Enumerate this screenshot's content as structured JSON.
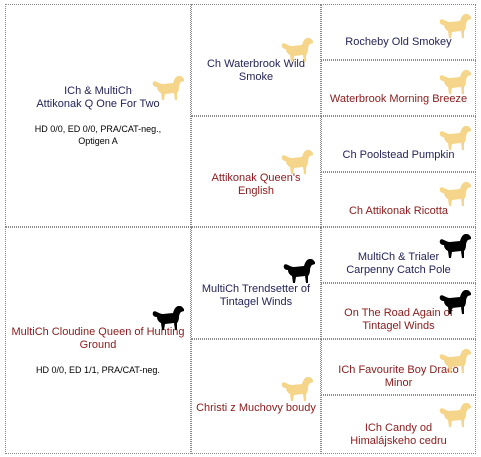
{
  "colors": {
    "yellow_dog": "#f5d58a",
    "black_dog": "#000000",
    "male_text": "#24245a",
    "female_text": "#8b1a1a"
  },
  "generation1": {
    "sire": {
      "name_line1": "ICh & MultiCh",
      "name_line2": "Attikonak Q One For Two",
      "health_line1": "HD 0/0, ED 0/0, PRA/CAT-neg.,",
      "health_line2": "Optigen A",
      "icon": "yellow-labrador-icon"
    },
    "dam": {
      "name": "MultiCh Cloudine Queen of Hunting Ground",
      "health": "HD 0/0, ED 1/1, PRA/CAT-neg.",
      "icon": "black-labrador-icon"
    }
  },
  "generation2": [
    {
      "name": "Ch Waterbrook Wild Smoke",
      "icon": "yellow-labrador-icon"
    },
    {
      "name": "Attikonak Queen's English",
      "icon": "yellow-labrador-icon"
    },
    {
      "name": "MultiCh Trendsetter of Tintagel Winds",
      "icon": "black-labrador-icon"
    },
    {
      "name": "Christi z Muchovy boudy",
      "icon": "yellow-labrador-icon"
    }
  ],
  "generation3": [
    {
      "name": "Rocheby Old Smokey",
      "icon": "yellow-labrador-icon"
    },
    {
      "name": "Waterbrook Morning Breeze",
      "icon": "yellow-labrador-icon"
    },
    {
      "name": "Ch Poolstead Pumpkin",
      "icon": "yellow-labrador-icon"
    },
    {
      "name": "Ch Attikonak Ricotta",
      "icon": "yellow-labrador-icon"
    },
    {
      "name": "MultiCh & Trialer Carpenny  Catch Pole",
      "icon": "black-labrador-icon"
    },
    {
      "name": "On The Road Again of Tintagel Winds",
      "icon": "black-labrador-icon"
    },
    {
      "name": "ICh Favourite Boy Draco Minor",
      "icon": "yellow-labrador-icon"
    },
    {
      "name": "ICh Candy od Himalájskeho cedru",
      "icon": "yellow-labrador-icon"
    }
  ]
}
